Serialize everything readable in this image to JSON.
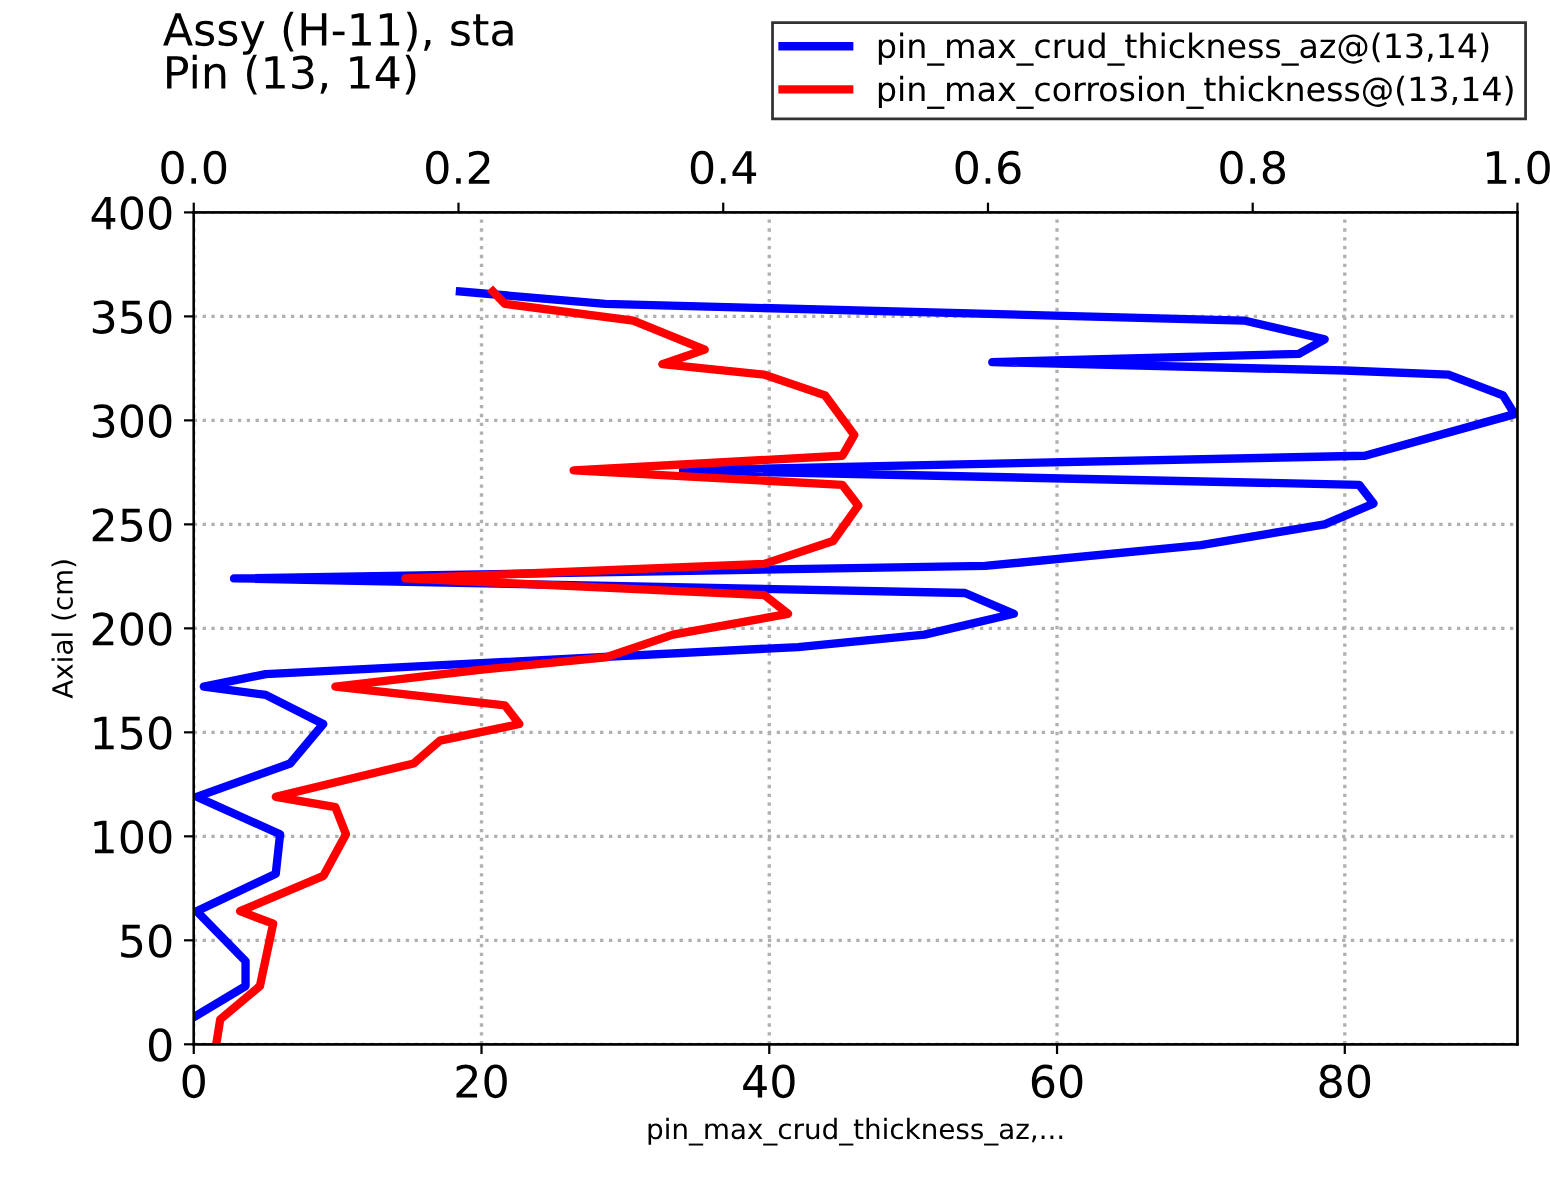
{
  "chart_data": {
    "type": "line",
    "title": "Assy (H-11), sta\nPin (13, 14)",
    "xlabel": "pin_max_crud_thickness_az,...",
    "ylabel": "Axial (cm)",
    "xlim": [
      0,
      92
    ],
    "xticks": [
      0,
      20,
      40,
      60,
      80
    ],
    "ylim": [
      0,
      400
    ],
    "yticks": [
      0,
      50,
      100,
      150,
      200,
      250,
      300,
      350,
      400
    ],
    "x2lim": [
      0,
      1
    ],
    "x2ticks": [
      {
        "value": 0,
        "label": "0.0"
      },
      {
        "value": 0.2,
        "label": "0.2"
      },
      {
        "value": 0.4,
        "label": "0.4"
      },
      {
        "value": 0.6,
        "label": "0.6"
      },
      {
        "value": 0.8,
        "label": "0.8"
      },
      {
        "value": 1,
        "label": "1.0"
      }
    ],
    "grid": true,
    "legend": "top right",
    "marker": "none",
    "line_style": "solid",
    "series": [
      {
        "name": "pin_max_crud_thickness_az@(13,14)",
        "color": "#0000ff",
        "x": [
          18.5,
          28.6,
          73,
          78.6,
          76.8,
          55.5,
          80,
          87.2,
          91,
          91.8,
          81.4,
          34,
          81,
          82,
          78.6,
          70,
          55,
          2.8,
          53.6,
          57,
          50.8,
          42,
          5,
          0.7,
          5,
          9,
          6.7,
          0.2,
          6,
          5.7,
          0.2,
          3.6,
          3.6,
          0
        ],
        "values": [
          362,
          356,
          348,
          339,
          332,
          328,
          324,
          322,
          312,
          303,
          283,
          276,
          269,
          260,
          250,
          240,
          230,
          224,
          217,
          207,
          197,
          191,
          178,
          172,
          168,
          154,
          135,
          119,
          101,
          82,
          64,
          40,
          28,
          13
        ]
      },
      {
        "name": "pin_max_corrosion_thickness@(13,14)",
        "color": "#ff0000",
        "axis": "x2",
        "x": [
          0.226,
          0.235,
          0.332,
          0.386,
          0.354,
          0.431,
          0.477,
          0.499,
          0.49,
          0.287,
          0.49,
          0.502,
          0.483,
          0.431,
          0.16,
          0.431,
          0.449,
          0.362,
          0.311,
          0.216,
          0.107,
          0.235,
          0.246,
          0.186,
          0.166,
          0.062,
          0.107,
          0.115,
          0.098,
          0.035,
          0.06,
          0.05,
          0.02,
          0.017
        ],
        "values": [
          362,
          356,
          348,
          334,
          327,
          322,
          312,
          293,
          283,
          276,
          269,
          259,
          242,
          231,
          224,
          216,
          207,
          197,
          186,
          180,
          172,
          163,
          154,
          146,
          135,
          119,
          114,
          101,
          81,
          64,
          58,
          28,
          12,
          0
        ]
      }
    ]
  }
}
